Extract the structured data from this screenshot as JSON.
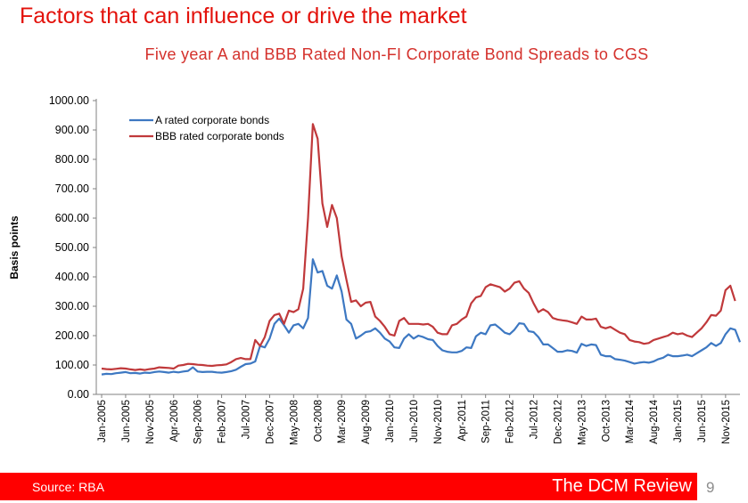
{
  "slide": {
    "title": "Factors that can influence or drive the market",
    "source": "Source: RBA",
    "brand": "The DCM Review",
    "page_number": "9"
  },
  "chart_data": {
    "type": "line",
    "title": "Five year A and BBB Rated Non-FI Corporate Bond Spreads to CGS",
    "ylabel": "Basis points",
    "xlabel": "",
    "ylim": [
      0,
      1000
    ],
    "yticks": [
      "0.00",
      "100.00",
      "200.00",
      "300.00",
      "400.00",
      "500.00",
      "600.00",
      "700.00",
      "800.00",
      "900.00",
      "1000.00"
    ],
    "grid": false,
    "legend_position": "top-left",
    "x_tick_labels": [
      "Jan-2005",
      "Jun-2005",
      "Nov-2005",
      "Apr-2006",
      "Sep-2006",
      "Feb-2007",
      "Jul-2007",
      "Dec-2007",
      "May-2008",
      "Oct-2008",
      "Mar-2009",
      "Aug-2009",
      "Jan-2010",
      "Jun-2010",
      "Nov-2010",
      "Apr-2011",
      "Sep-2011",
      "Feb-2012",
      "Jul-2012",
      "Dec-2012",
      "May-2013",
      "Oct-2013",
      "Mar-2014",
      "Aug-2014",
      "Jan-2015",
      "Jun-2015",
      "Nov-2015"
    ],
    "start_month": "Jan-2005",
    "series": [
      {
        "name": "A rated corporate bonds",
        "color": "#3d78c2",
        "values": [
          68,
          70,
          69,
          72,
          74,
          76,
          72,
          73,
          71,
          74,
          73,
          76,
          78,
          76,
          74,
          77,
          75,
          78,
          80,
          92,
          78,
          76,
          77,
          77,
          75,
          74,
          76,
          79,
          84,
          94,
          103,
          105,
          112,
          165,
          160,
          190,
          240,
          258,
          235,
          210,
          235,
          240,
          225,
          260,
          460,
          415,
          420,
          370,
          360,
          405,
          350,
          255,
          240,
          190,
          200,
          212,
          215,
          225,
          210,
          190,
          180,
          160,
          158,
          190,
          205,
          190,
          200,
          195,
          188,
          185,
          165,
          150,
          145,
          143,
          143,
          148,
          160,
          158,
          198,
          210,
          205,
          235,
          238,
          225,
          210,
          205,
          220,
          242,
          240,
          215,
          212,
          195,
          170,
          170,
          158,
          145,
          145,
          150,
          148,
          142,
          172,
          165,
          170,
          168,
          135,
          130,
          130,
          120,
          118,
          115,
          110,
          105,
          108,
          110,
          108,
          112,
          120,
          125,
          135,
          130,
          130,
          132,
          135,
          130,
          140,
          150,
          160,
          175,
          165,
          175,
          205,
          225,
          220,
          178
        ]
      },
      {
        "name": "BBB rated corporate bonds",
        "color": "#c0393b",
        "values": [
          88,
          86,
          85,
          87,
          89,
          88,
          85,
          83,
          85,
          83,
          86,
          88,
          92,
          91,
          90,
          88,
          98,
          100,
          104,
          103,
          101,
          100,
          98,
          97,
          99,
          100,
          102,
          110,
          120,
          124,
          120,
          120,
          185,
          165,
          195,
          250,
          270,
          275,
          240,
          285,
          280,
          290,
          360,
          600,
          920,
          870,
          650,
          570,
          645,
          600,
          470,
          390,
          315,
          320,
          300,
          312,
          315,
          265,
          250,
          230,
          205,
          200,
          250,
          260,
          240,
          240,
          240,
          238,
          240,
          230,
          210,
          205,
          205,
          235,
          240,
          255,
          265,
          310,
          330,
          335,
          365,
          375,
          370,
          365,
          350,
          360,
          380,
          385,
          360,
          345,
          310,
          280,
          290,
          280,
          260,
          255,
          252,
          250,
          245,
          240,
          265,
          255,
          255,
          258,
          230,
          225,
          230,
          220,
          210,
          205,
          185,
          180,
          178,
          172,
          175,
          185,
          190,
          195,
          200,
          210,
          205,
          208,
          200,
          195,
          210,
          225,
          245,
          270,
          268,
          285,
          355,
          370,
          318
        ]
      }
    ]
  }
}
